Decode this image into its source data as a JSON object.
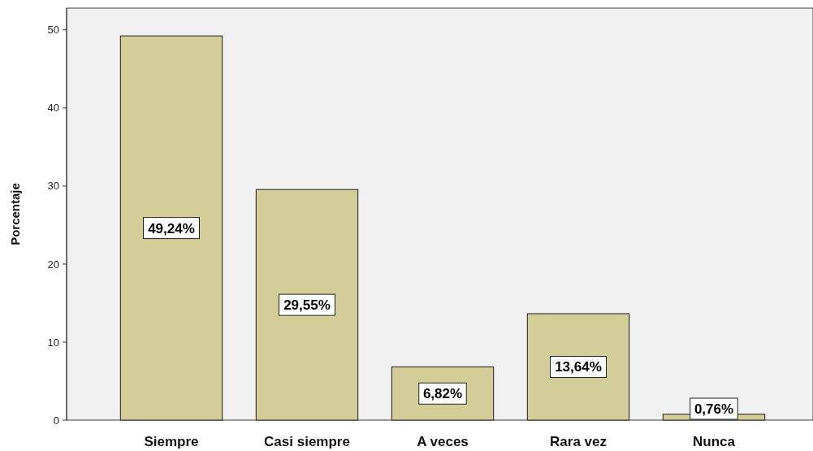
{
  "chart_data": {
    "type": "bar",
    "ylabel": "Porcentaje",
    "categories": [
      "Siempre",
      "Casi siempre",
      "A veces",
      "Rara vez",
      "Nunca"
    ],
    "values": [
      49.24,
      29.55,
      6.82,
      13.64,
      0.76
    ],
    "value_labels": [
      "49,24%",
      "29,55%",
      "6,82%",
      "13,64%",
      "0,76%"
    ],
    "color": "#d3ce97",
    "ylim": [
      0,
      52.8
    ],
    "yticks": [
      0,
      10,
      20,
      30,
      40,
      50
    ],
    "grid": false
  }
}
